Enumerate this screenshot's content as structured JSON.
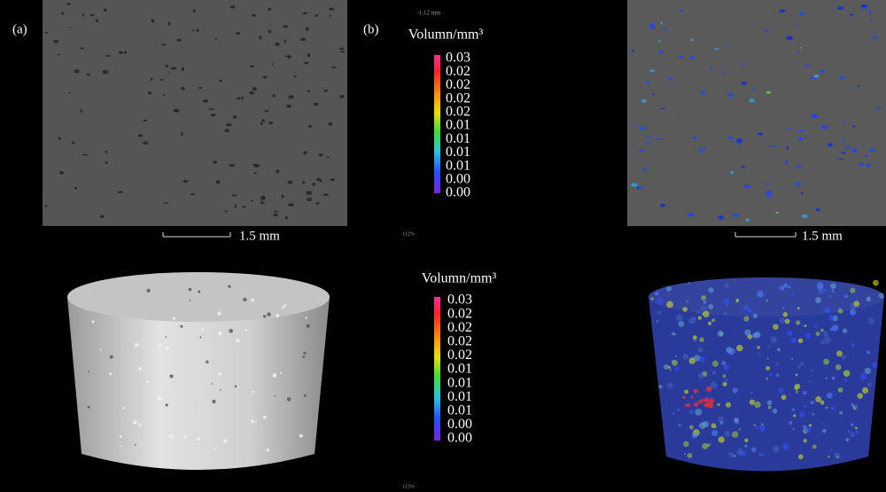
{
  "panels": [
    {
      "label": "(a)"
    },
    {
      "label": "(b)"
    }
  ],
  "colorbars": [
    {
      "title": "Volumn/mm³",
      "ticks": [
        "0.03",
        "0.02",
        "0.02",
        "0.02",
        "0.02",
        "0.01",
        "0.01",
        "0.01",
        "0.01",
        "0.00",
        "0.00"
      ]
    },
    {
      "title": "Volumn/mm³",
      "ticks": [
        "0.03",
        "0.02",
        "0.02",
        "0.02",
        "0.02",
        "0.01",
        "0.01",
        "0.01",
        "0.01",
        "0.00",
        "0.00"
      ]
    }
  ],
  "scale_bars": [
    {
      "label": "1.5 mm"
    },
    {
      "label": "1.5 mm"
    }
  ],
  "viewer_text": {
    "slice": "-1.12 mm",
    "zoom_top": "112%",
    "zoom_bottom": "113%"
  }
}
